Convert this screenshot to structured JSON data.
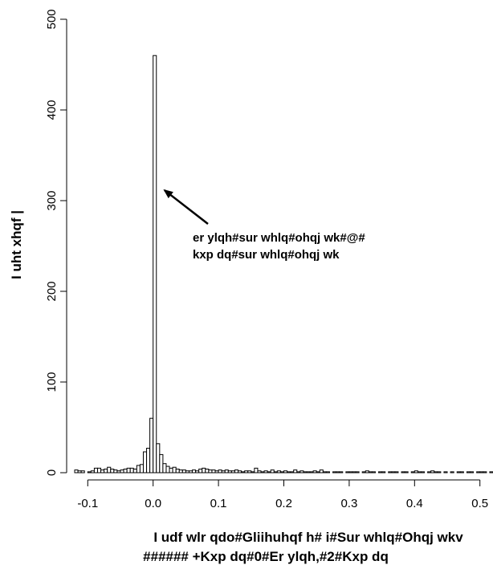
{
  "chart_data": {
    "type": "bar",
    "subtype": "histogram",
    "xlabel_lines": [
      "I udf wlr qdo#Gliihuhqf h# i#Sur whlq#Ohqj wkv",
      "###### +Kxp dq#0#Er ylqh,#2#Kxp dq"
    ],
    "ylabel": "I uht xhqf |",
    "annotation_lines": [
      "er ylqh#sur whlq#ohqj wk#@#",
      "kxp dq#sur whlq#ohqj wk"
    ],
    "annotation_arrow_target": {
      "x": 0.02,
      "y": 315
    },
    "xlim": [
      -0.12,
      0.52
    ],
    "ylim": [
      0,
      500
    ],
    "x_ticks": [
      -0.1,
      0.0,
      0.1,
      0.2,
      0.3,
      0.4,
      0.5
    ],
    "x_tick_labels": [
      "-0.1",
      "0.0",
      "0.1",
      "0.2",
      "0.3",
      "0.4",
      "0.5"
    ],
    "y_ticks": [
      0,
      100,
      200,
      300,
      400,
      500
    ],
    "y_tick_labels": [
      "0",
      "100",
      "200",
      "300",
      "400",
      "500"
    ],
    "bin_width": 0.005,
    "bins": [
      {
        "x0": -0.12,
        "count": 3
      },
      {
        "x0": -0.115,
        "count": 2
      },
      {
        "x0": -0.11,
        "count": 2
      },
      {
        "x0": -0.105,
        "count": 0
      },
      {
        "x0": -0.1,
        "count": 1
      },
      {
        "x0": -0.095,
        "count": 2
      },
      {
        "x0": -0.09,
        "count": 5
      },
      {
        "x0": -0.085,
        "count": 5
      },
      {
        "x0": -0.08,
        "count": 3
      },
      {
        "x0": -0.075,
        "count": 4
      },
      {
        "x0": -0.07,
        "count": 6
      },
      {
        "x0": -0.065,
        "count": 4
      },
      {
        "x0": -0.06,
        "count": 3
      },
      {
        "x0": -0.055,
        "count": 2
      },
      {
        "x0": -0.05,
        "count": 3
      },
      {
        "x0": -0.045,
        "count": 4
      },
      {
        "x0": -0.04,
        "count": 5
      },
      {
        "x0": -0.035,
        "count": 5
      },
      {
        "x0": -0.03,
        "count": 4
      },
      {
        "x0": -0.025,
        "count": 8
      },
      {
        "x0": -0.02,
        "count": 9
      },
      {
        "x0": -0.015,
        "count": 23
      },
      {
        "x0": -0.01,
        "count": 27
      },
      {
        "x0": -0.005,
        "count": 60
      },
      {
        "x0": 0.0,
        "count": 460
      },
      {
        "x0": 0.005,
        "count": 32
      },
      {
        "x0": 0.01,
        "count": 20
      },
      {
        "x0": 0.015,
        "count": 10
      },
      {
        "x0": 0.02,
        "count": 7
      },
      {
        "x0": 0.025,
        "count": 5
      },
      {
        "x0": 0.03,
        "count": 6
      },
      {
        "x0": 0.035,
        "count": 4
      },
      {
        "x0": 0.04,
        "count": 3
      },
      {
        "x0": 0.045,
        "count": 3
      },
      {
        "x0": 0.05,
        "count": 2
      },
      {
        "x0": 0.055,
        "count": 2
      },
      {
        "x0": 0.06,
        "count": 3
      },
      {
        "x0": 0.065,
        "count": 2
      },
      {
        "x0": 0.07,
        "count": 4
      },
      {
        "x0": 0.075,
        "count": 5
      },
      {
        "x0": 0.08,
        "count": 4
      },
      {
        "x0": 0.085,
        "count": 3
      },
      {
        "x0": 0.09,
        "count": 3
      },
      {
        "x0": 0.095,
        "count": 2
      },
      {
        "x0": 0.1,
        "count": 3
      },
      {
        "x0": 0.105,
        "count": 2
      },
      {
        "x0": 0.11,
        "count": 3
      },
      {
        "x0": 0.115,
        "count": 2
      },
      {
        "x0": 0.12,
        "count": 2
      },
      {
        "x0": 0.125,
        "count": 3
      },
      {
        "x0": 0.13,
        "count": 2
      },
      {
        "x0": 0.135,
        "count": 1
      },
      {
        "x0": 0.14,
        "count": 2
      },
      {
        "x0": 0.145,
        "count": 2
      },
      {
        "x0": 0.15,
        "count": 1
      },
      {
        "x0": 0.155,
        "count": 5
      },
      {
        "x0": 0.16,
        "count": 2
      },
      {
        "x0": 0.165,
        "count": 1
      },
      {
        "x0": 0.17,
        "count": 2
      },
      {
        "x0": 0.175,
        "count": 1
      },
      {
        "x0": 0.18,
        "count": 3
      },
      {
        "x0": 0.185,
        "count": 1
      },
      {
        "x0": 0.19,
        "count": 2
      },
      {
        "x0": 0.195,
        "count": 1
      },
      {
        "x0": 0.2,
        "count": 2
      },
      {
        "x0": 0.205,
        "count": 1
      },
      {
        "x0": 0.21,
        "count": 1
      },
      {
        "x0": 0.215,
        "count": 3
      },
      {
        "x0": 0.22,
        "count": 1
      },
      {
        "x0": 0.225,
        "count": 2
      },
      {
        "x0": 0.23,
        "count": 1
      },
      {
        "x0": 0.235,
        "count": 1
      },
      {
        "x0": 0.24,
        "count": 1
      },
      {
        "x0": 0.245,
        "count": 2
      },
      {
        "x0": 0.25,
        "count": 1
      },
      {
        "x0": 0.255,
        "count": 3
      },
      {
        "x0": 0.26,
        "count": 1
      },
      {
        "x0": 0.265,
        "count": 1
      },
      {
        "x0": 0.27,
        "count": 0
      },
      {
        "x0": 0.275,
        "count": 1
      },
      {
        "x0": 0.28,
        "count": 1
      },
      {
        "x0": 0.285,
        "count": 1
      },
      {
        "x0": 0.29,
        "count": 0
      },
      {
        "x0": 0.295,
        "count": 1
      },
      {
        "x0": 0.3,
        "count": 1
      },
      {
        "x0": 0.305,
        "count": 1
      },
      {
        "x0": 0.31,
        "count": 1
      },
      {
        "x0": 0.315,
        "count": 0
      },
      {
        "x0": 0.32,
        "count": 1
      },
      {
        "x0": 0.325,
        "count": 2
      },
      {
        "x0": 0.33,
        "count": 1
      },
      {
        "x0": 0.335,
        "count": 1
      },
      {
        "x0": 0.34,
        "count": 0
      },
      {
        "x0": 0.345,
        "count": 1
      },
      {
        "x0": 0.35,
        "count": 1
      },
      {
        "x0": 0.355,
        "count": 0
      },
      {
        "x0": 0.36,
        "count": 1
      },
      {
        "x0": 0.365,
        "count": 1
      },
      {
        "x0": 0.37,
        "count": 1
      },
      {
        "x0": 0.375,
        "count": 0
      },
      {
        "x0": 0.38,
        "count": 1
      },
      {
        "x0": 0.385,
        "count": 1
      },
      {
        "x0": 0.39,
        "count": 0
      },
      {
        "x0": 0.395,
        "count": 1
      },
      {
        "x0": 0.4,
        "count": 2
      },
      {
        "x0": 0.405,
        "count": 1
      },
      {
        "x0": 0.41,
        "count": 1
      },
      {
        "x0": 0.415,
        "count": 0
      },
      {
        "x0": 0.42,
        "count": 1
      },
      {
        "x0": 0.425,
        "count": 2
      },
      {
        "x0": 0.43,
        "count": 1
      },
      {
        "x0": 0.435,
        "count": 1
      },
      {
        "x0": 0.44,
        "count": 0
      },
      {
        "x0": 0.445,
        "count": 1
      },
      {
        "x0": 0.45,
        "count": 0
      },
      {
        "x0": 0.455,
        "count": 1
      },
      {
        "x0": 0.46,
        "count": 0
      },
      {
        "x0": 0.465,
        "count": 1
      },
      {
        "x0": 0.47,
        "count": 1
      },
      {
        "x0": 0.475,
        "count": 0
      },
      {
        "x0": 0.48,
        "count": 1
      },
      {
        "x0": 0.485,
        "count": 1
      },
      {
        "x0": 0.49,
        "count": 0
      },
      {
        "x0": 0.495,
        "count": 1
      },
      {
        "x0": 0.5,
        "count": 1
      },
      {
        "x0": 0.505,
        "count": 1
      },
      {
        "x0": 0.51,
        "count": 0
      },
      {
        "x0": 0.515,
        "count": 1
      }
    ],
    "bar_fill": "#ffffff",
    "bar_stroke": "#000000",
    "grid": false,
    "legend": "none"
  }
}
